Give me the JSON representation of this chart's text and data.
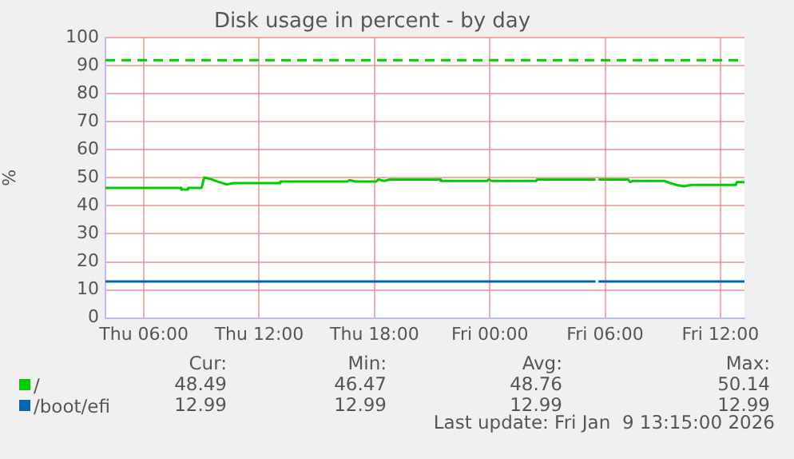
{
  "chart_data": {
    "type": "line",
    "title": "Disk usage in percent - by day",
    "ylabel": "%",
    "xlim": [
      "2026-01-08T04:00",
      "2026-01-09T13:15"
    ],
    "xticks": [
      {
        "value": "2026-01-08T06:00",
        "label": "Thu 06:00"
      },
      {
        "value": "2026-01-08T12:00",
        "label": "Thu 12:00"
      },
      {
        "value": "2026-01-08T18:00",
        "label": "Thu 18:00"
      },
      {
        "value": "2026-01-09T00:00",
        "label": "Fri 00:00"
      },
      {
        "value": "2026-01-09T06:00",
        "label": "Fri 06:00"
      },
      {
        "value": "2026-01-09T12:00",
        "label": "Fri 12:00"
      }
    ],
    "ylim": [
      0,
      100
    ],
    "yticks": [
      0,
      10,
      20,
      30,
      40,
      50,
      60,
      70,
      80,
      90,
      100
    ],
    "grid": true,
    "legend": "bottom",
    "marker": "none",
    "line_style": "solid",
    "series": [
      {
        "name": "/",
        "color": "#00cc00",
        "x": [
          "2026-01-08T04:00",
          "2026-01-08T07:56",
          "2026-01-08T07:57",
          "2026-01-08T08:17",
          "2026-01-08T08:18",
          "2026-01-08T09:00",
          "2026-01-08T09:08",
          "2026-01-08T09:30",
          "2026-01-08T09:54",
          "2026-01-08T10:18",
          "2026-01-08T10:42",
          "2026-01-08T13:05",
          "2026-01-08T13:06",
          "2026-01-08T16:36",
          "2026-01-08T16:42",
          "2026-01-08T17:00",
          "2026-01-08T18:05",
          "2026-01-08T18:12",
          "2026-01-08T18:30",
          "2026-01-08T18:48",
          "2026-01-08T21:25",
          "2026-01-08T21:27",
          "2026-01-08T23:51",
          "2026-01-08T23:57",
          "2026-01-09T00:06",
          "2026-01-09T02:25",
          "2026-01-09T02:27",
          "2026-01-09T05:30",
          "2026-01-09T05:33",
          "2026-01-09T05:39",
          "2026-01-09T07:12",
          "2026-01-09T07:18",
          "2026-01-09T07:27",
          "2026-01-09T09:05",
          "2026-01-09T09:24",
          "2026-01-09T09:42",
          "2026-01-09T10:06",
          "2026-01-09T10:30",
          "2026-01-09T12:48",
          "2026-01-09T12:51",
          "2026-01-09T13:15"
        ],
        "values": [
          46.4,
          46.4,
          45.8,
          45.8,
          46.4,
          46.4,
          50.1,
          49.5,
          48.5,
          47.7,
          48.1,
          48.1,
          48.7,
          48.7,
          49.2,
          48.7,
          48.7,
          49.4,
          48.9,
          49.4,
          49.4,
          48.9,
          48.9,
          49.4,
          48.9,
          48.9,
          49.4,
          49.4,
          null,
          49.4,
          49.4,
          48.5,
          48.9,
          48.9,
          48.1,
          47.5,
          47.0,
          47.5,
          47.5,
          48.5,
          48.5
        ]
      },
      {
        "name": "/boot/efi",
        "color": "#0066b3",
        "x": [
          "2026-01-08T04:00",
          "2026-01-09T05:30",
          "2026-01-09T05:33",
          "2026-01-09T05:39",
          "2026-01-09T13:15"
        ],
        "values": [
          13,
          13,
          null,
          13,
          13
        ]
      }
    ],
    "ref_lines": [
      {
        "axis": "y",
        "value": 92,
        "color": "#00cc00",
        "line_style": "dashed"
      }
    ],
    "annotations": [
      "Cur:",
      "Min:",
      "Avg:",
      "Max:",
      "48.49",
      "46.47",
      "48.76",
      "50.14",
      "12.99",
      "12.99",
      "12.99",
      "12.99",
      "Last update: Fri Jan  9 13:15:00 2026"
    ]
  }
}
